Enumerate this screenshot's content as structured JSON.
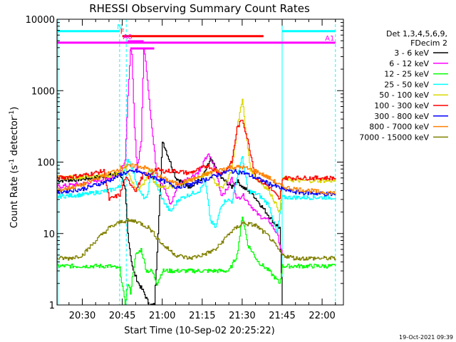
{
  "chart_data": {
    "type": "line",
    "title": "RHESSI Observing Summary Count Rates",
    "xlabel": "Start Time (10-Sep-02 20:25:22)",
    "ylabel": "Count Rate (s⁻¹ detector⁻¹)",
    "ylabel_parts": {
      "main": "Count Rate (s",
      "exp1": "-1",
      "mid": " detector",
      "exp2": "-1",
      "end": ")"
    },
    "yscale": "log",
    "ylim": [
      1,
      10000
    ],
    "xlim_minutes": [
      20.5,
      128
    ],
    "x_unit": "time",
    "x_ticks": [
      {
        "label": "20:30",
        "t": 30
      },
      {
        "label": "20:45",
        "t": 45
      },
      {
        "label": "21:00",
        "t": 60
      },
      {
        "label": "21:15",
        "t": 75
      },
      {
        "label": "21:30",
        "t": 90
      },
      {
        "label": "21:45",
        "t": 105
      },
      {
        "label": "22:00",
        "t": 120
      }
    ],
    "y_ticks": [
      "1",
      "10",
      "100",
      "1000",
      "10000"
    ],
    "legend": {
      "position": "right",
      "header": [
        "Det 1,3,4,5,6,9,",
        "FDecim 2"
      ],
      "entries": [
        {
          "label": "3 - 6 keV",
          "color": "#000000"
        },
        {
          "label": "6 - 12 keV",
          "color": "#ff00ff"
        },
        {
          "label": "12 - 25 keV",
          "color": "#00ff00"
        },
        {
          "label": "25 - 50 keV",
          "color": "#00ffff"
        },
        {
          "label": "50 - 100 keV",
          "color": "#d8d800"
        },
        {
          "label": "100 - 300 keV",
          "color": "#ff0000"
        },
        {
          "label": "300 - 800 keV",
          "color": "#0000ff"
        },
        {
          "label": "800 - 7000 keV",
          "color": "#ff8000"
        },
        {
          "label": "7000 - 15000 keV",
          "color": "#808000"
        }
      ]
    },
    "flags": [
      {
        "label": "N",
        "color": "#00ffff",
        "segments": [
          [
            20.5,
            44
          ],
          [
            105,
            125
          ]
        ],
        "level": 6800
      },
      {
        "label": "F",
        "color": "#ff0000",
        "segments": [
          [
            45,
            98
          ]
        ],
        "level": 5800
      },
      {
        "label": "A0",
        "color": "#ff00ff",
        "segments": [
          [
            47,
            53
          ]
        ],
        "level": 4900
      },
      {
        "label": "A1",
        "color": "#ff00ff",
        "segments": [
          [
            20.5,
            125
          ]
        ],
        "level": 4700
      },
      {
        "label": "",
        "color": "#ff00ff",
        "segments": [
          [
            48,
            57
          ]
        ],
        "level": 3900
      }
    ],
    "attenuator_markers": [
      {
        "t": 20.8,
        "color": "#00ffff",
        "style": "solid"
      },
      {
        "t": 44,
        "color": "#00ffff",
        "style": "dashed"
      },
      {
        "t": 46.5,
        "color": "#00ffff",
        "style": "dashed"
      },
      {
        "t": 105,
        "color": "#00ffff",
        "style": "solid"
      },
      {
        "t": 125,
        "color": "#00ffff",
        "style": "dashed"
      }
    ],
    "series": [
      {
        "name": "3 - 6 keV",
        "color": "#000000",
        "t": [
          20.5,
          30,
          40,
          44,
          46,
          47,
          48,
          49,
          51,
          53,
          55,
          57,
          60,
          65,
          70,
          75,
          78,
          82,
          86,
          88,
          90,
          94,
          98,
          102,
          104,
          105
        ],
        "y": [
          55,
          58,
          65,
          70,
          40,
          10,
          5,
          3,
          2,
          1.5,
          1,
          1,
          200,
          60,
          45,
          60,
          110,
          60,
          45,
          55,
          45,
          35,
          22,
          14,
          12,
          1
        ]
      },
      {
        "name": "6 - 12 keV",
        "color": "#ff00ff",
        "t": [
          20.5,
          30,
          40,
          44,
          46,
          47,
          48,
          48.5,
          49.5,
          50.5,
          52,
          53,
          54,
          56,
          58,
          60,
          63,
          66,
          70,
          74,
          77,
          80,
          82,
          84,
          86,
          88,
          90,
          93,
          96,
          100,
          103,
          105
        ],
        "y": [
          45,
          50,
          60,
          70,
          110,
          800,
          4000,
          3000,
          300,
          80,
          200,
          4000,
          2000,
          300,
          60,
          50,
          25,
          50,
          60,
          75,
          130,
          80,
          35,
          40,
          60,
          30,
          35,
          25,
          18,
          15,
          10,
          5
        ]
      },
      {
        "name": "12 - 25 keV",
        "color": "#00ff00",
        "t": [
          20.5,
          30,
          40,
          44,
          46,
          47,
          48,
          49,
          50,
          52,
          54,
          56,
          58,
          60,
          65,
          70,
          75,
          80,
          85,
          88,
          90,
          92,
          96,
          100,
          104,
          105,
          110,
          120,
          125
        ],
        "y": [
          3.5,
          3.5,
          3.5,
          3.2,
          1,
          2,
          1.5,
          3,
          5,
          6,
          3,
          3,
          2,
          3,
          3,
          3,
          3,
          3,
          3,
          5,
          18,
          7,
          4,
          3,
          2,
          3.5,
          3.5,
          3.5,
          3.5
        ]
      },
      {
        "name": "25 - 50 keV",
        "color": "#00ffff",
        "t": [
          20.5,
          30,
          40,
          44,
          46,
          47,
          48,
          50,
          52,
          54,
          56,
          58,
          60,
          63,
          66,
          70,
          74,
          76,
          78,
          80,
          82,
          84,
          86,
          88,
          90,
          92,
          96,
          100,
          103,
          105,
          110,
          125
        ],
        "y": [
          33,
          35,
          40,
          45,
          80,
          110,
          95,
          55,
          35,
          30,
          80,
          45,
          30,
          20,
          30,
          35,
          40,
          55,
          15,
          12,
          25,
          30,
          28,
          60,
          120,
          40,
          35,
          25,
          10,
          32,
          32,
          32
        ]
      },
      {
        "name": "50 - 100 keV",
        "color": "#d8d800",
        "t": [
          20.5,
          30,
          40,
          44,
          46,
          48,
          50,
          53,
          55,
          57,
          60,
          65,
          70,
          75,
          78,
          80,
          83,
          86,
          88,
          90,
          91,
          93,
          96,
          100,
          104,
          105,
          110,
          125
        ],
        "y": [
          60,
          62,
          65,
          68,
          90,
          60,
          40,
          50,
          80,
          50,
          45,
          45,
          55,
          65,
          70,
          50,
          45,
          80,
          300,
          800,
          300,
          80,
          55,
          40,
          20,
          60,
          55,
          55
        ]
      },
      {
        "name": "100 - 300 keV",
        "color": "#ff0000",
        "t": [
          20.5,
          30,
          38,
          40,
          44,
          46,
          48,
          50,
          53,
          55,
          57,
          60,
          65,
          70,
          74,
          77,
          80,
          83,
          86,
          88,
          90,
          92,
          95,
          100,
          104,
          105,
          110,
          125
        ],
        "y": [
          60,
          65,
          75,
          30,
          35,
          60,
          50,
          40,
          70,
          60,
          80,
          75,
          75,
          70,
          80,
          90,
          75,
          70,
          100,
          300,
          400,
          200,
          60,
          45,
          30,
          60,
          60,
          60
        ]
      },
      {
        "name": "300 - 800 keV",
        "color": "#0000ff",
        "t": [
          20.5,
          30,
          40,
          45,
          50,
          55,
          60,
          65,
          70,
          75,
          80,
          85,
          90,
          95,
          100,
          105,
          110,
          120,
          125
        ],
        "y": [
          38,
          42,
          55,
          70,
          75,
          65,
          55,
          45,
          48,
          55,
          65,
          75,
          72,
          60,
          50,
          42,
          38,
          36,
          35
        ]
      },
      {
        "name": "800 - 7000 keV",
        "color": "#ff8000",
        "t": [
          20.5,
          30,
          40,
          45,
          50,
          55,
          60,
          65,
          70,
          75,
          80,
          85,
          90,
          95,
          100,
          105,
          110,
          120,
          125
        ],
        "y": [
          40,
          48,
          70,
          85,
          90,
          80,
          60,
          50,
          55,
          65,
          75,
          85,
          85,
          75,
          60,
          45,
          42,
          38,
          37
        ]
      },
      {
        "name": "7000 - 15000 keV",
        "color": "#808000",
        "t": [
          20.5,
          25,
          30,
          35,
          40,
          45,
          50,
          55,
          60,
          65,
          70,
          75,
          80,
          85,
          90,
          95,
          100,
          105,
          110,
          120,
          125
        ],
        "y": [
          4.5,
          4.5,
          5,
          8,
          12,
          15,
          15,
          12,
          7,
          5,
          4.5,
          5,
          6,
          10,
          14,
          13,
          9,
          5,
          4.5,
          4.5,
          4.5
        ]
      }
    ]
  },
  "footer": {
    "timestamp": "19-Oct-2021 09:39"
  }
}
